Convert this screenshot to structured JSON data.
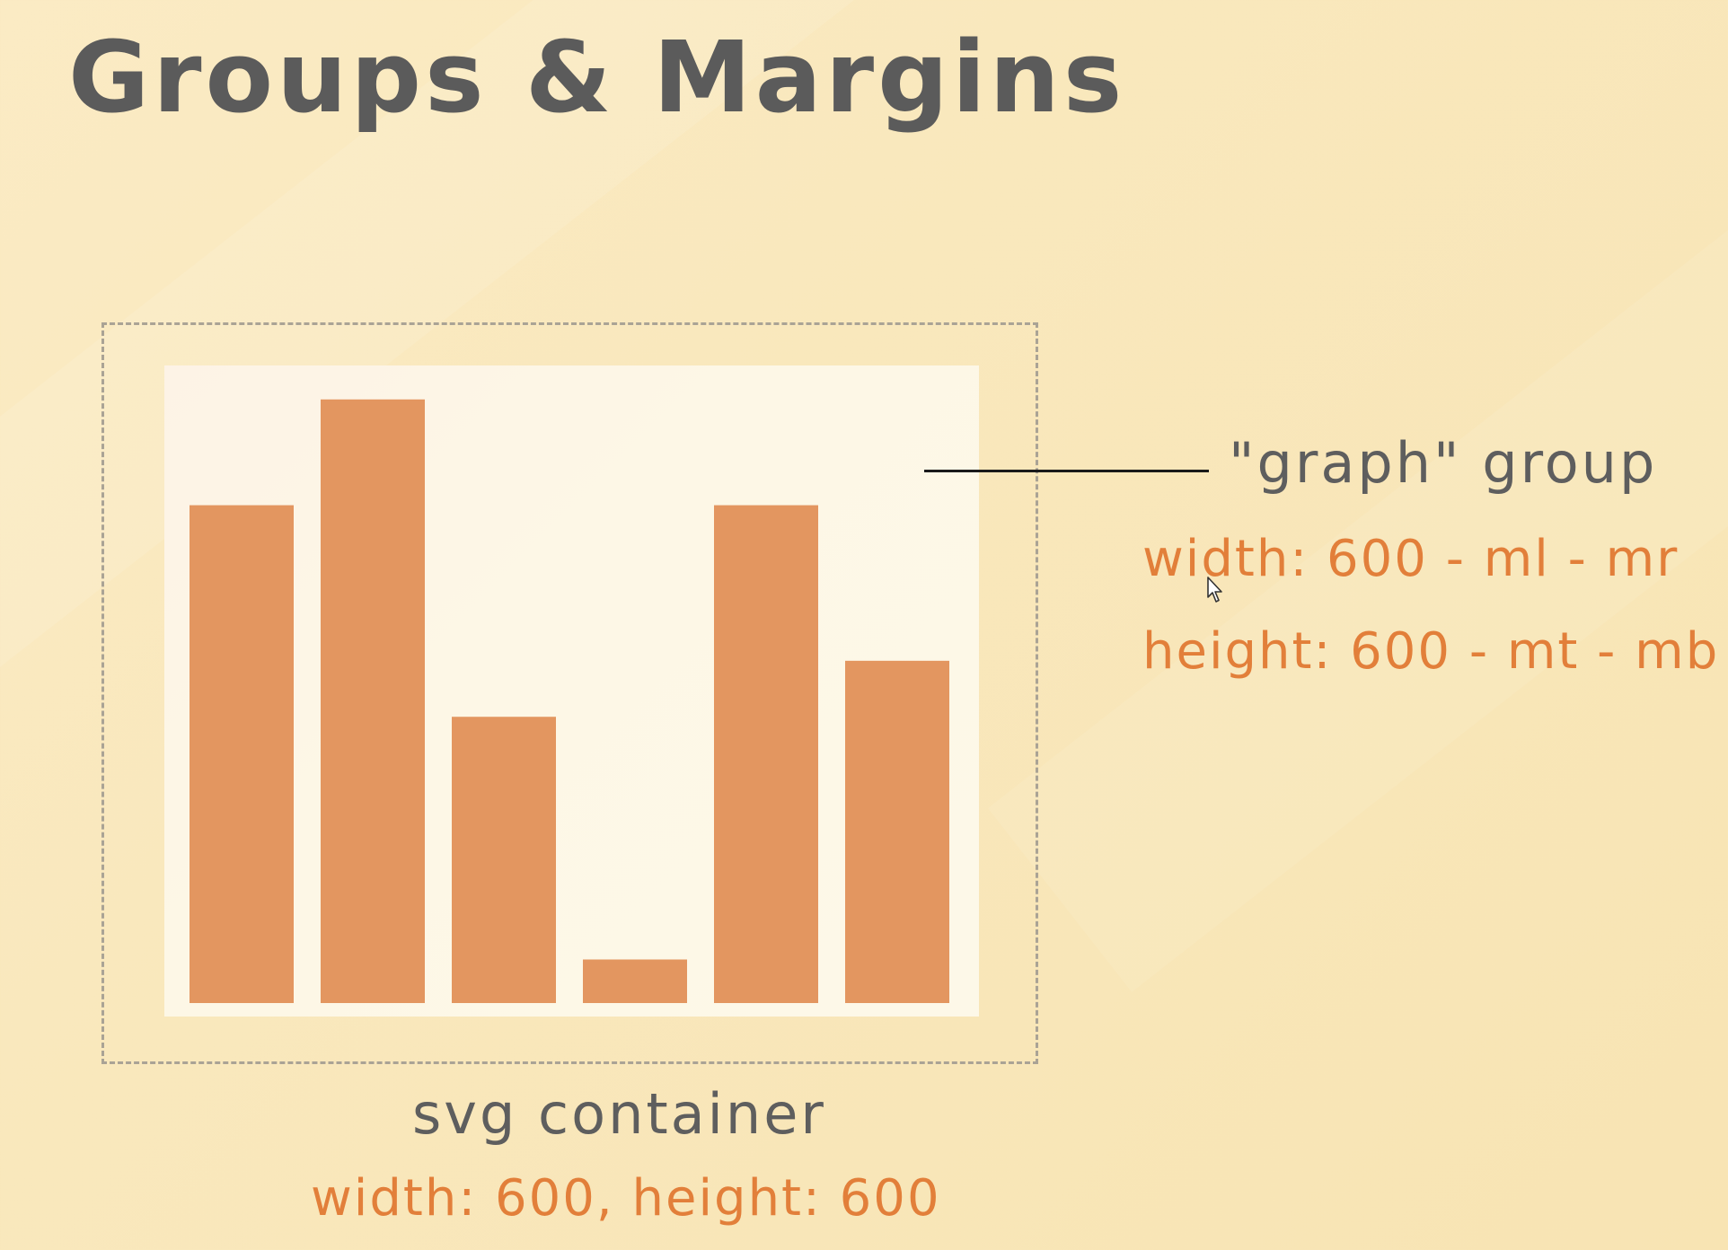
{
  "slide": {
    "title": "Groups & Margins"
  },
  "graph_group": {
    "label": "\"graph\" group",
    "width_formula": "width: 600 - ml - mr",
    "height_formula": "height: 600 - mt - mb"
  },
  "svg_container": {
    "label": "svg container",
    "dimensions": "width: 600, height: 600"
  },
  "colors": {
    "bar": "#e39660",
    "accent_text": "#e27f3a",
    "label_text": "#5e5e5e",
    "title_text": "#5b5b5b"
  },
  "icons": {
    "cursor": "mouse-cursor-icon"
  },
  "chart_data": {
    "type": "bar",
    "values": [
      80,
      97,
      46,
      7,
      80,
      55
    ],
    "ylim": [
      0,
      100
    ],
    "color": "#e39660"
  }
}
